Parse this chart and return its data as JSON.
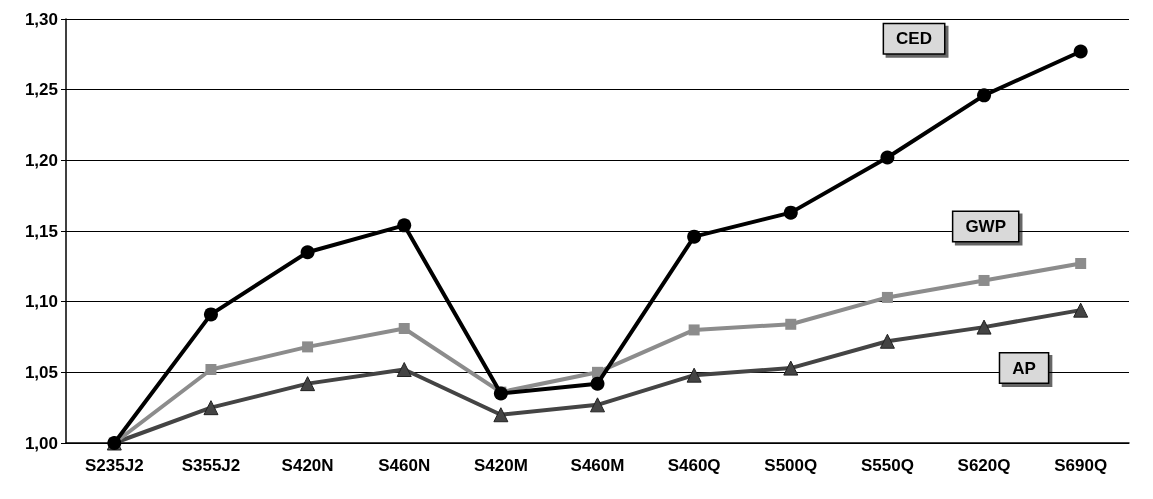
{
  "chart_data": {
    "type": "line",
    "categories": [
      "S235J2",
      "S355J2",
      "S420N",
      "S460N",
      "S420M",
      "S460M",
      "S460Q",
      "S500Q",
      "S550Q",
      "S620Q",
      "S690Q"
    ],
    "series": [
      {
        "name": "CED",
        "color": "#000000",
        "marker": "circle",
        "values": [
          1.0,
          1.091,
          1.135,
          1.154,
          1.035,
          1.042,
          1.146,
          1.163,
          1.202,
          1.246,
          1.277
        ]
      },
      {
        "name": "GWP",
        "color": "#8c8c8c",
        "marker": "square",
        "values": [
          1.0,
          1.052,
          1.068,
          1.081,
          1.036,
          1.05,
          1.08,
          1.084,
          1.103,
          1.115,
          1.127
        ]
      },
      {
        "name": "AP",
        "color": "#444444",
        "marker": "triangle",
        "values": [
          1.0,
          1.025,
          1.042,
          1.052,
          1.02,
          1.027,
          1.048,
          1.053,
          1.072,
          1.082,
          1.094
        ]
      }
    ],
    "ylim": [
      1.0,
      1.3
    ],
    "yticks": [
      {
        "value": 1.0,
        "label": "1,00"
      },
      {
        "value": 1.05,
        "label": "1,05"
      },
      {
        "value": 1.1,
        "label": "1,10"
      },
      {
        "value": 1.15,
        "label": "1,15"
      },
      {
        "value": 1.2,
        "label": "1,20"
      },
      {
        "value": 1.25,
        "label": "1,25"
      },
      {
        "value": 1.3,
        "label": "1,30"
      }
    ],
    "grid": "y",
    "legend": false,
    "line_style": "solid"
  }
}
